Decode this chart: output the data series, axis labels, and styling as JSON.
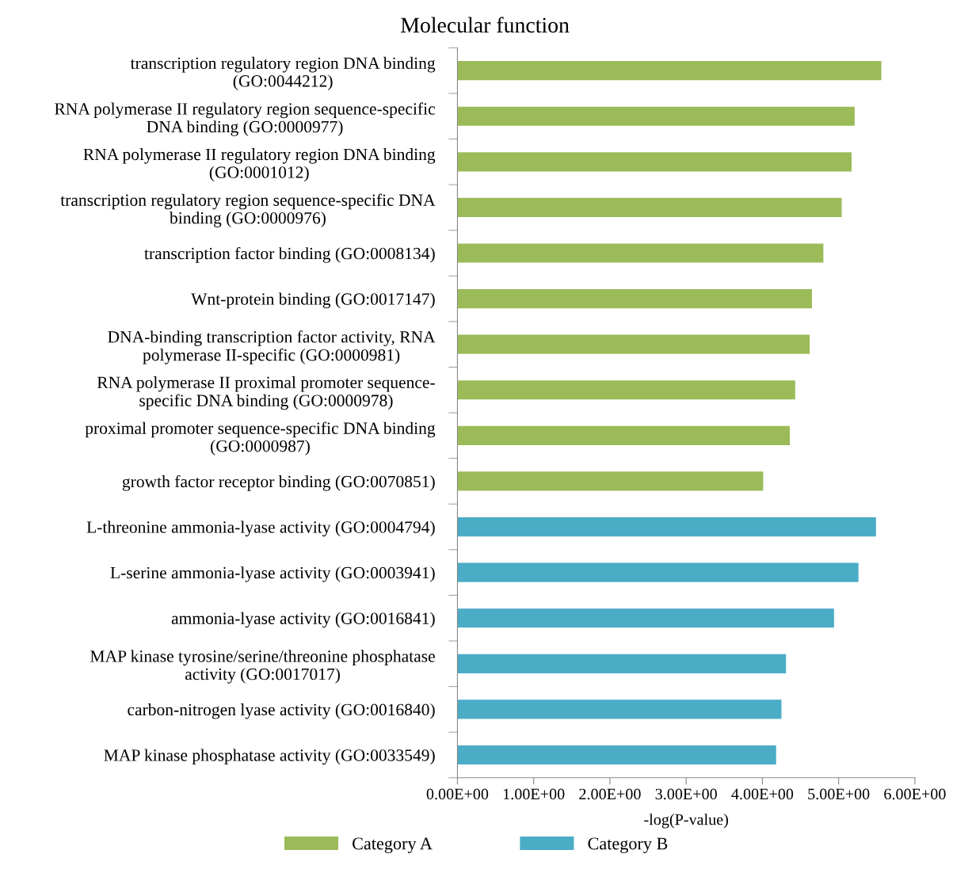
{
  "chart_data": {
    "type": "bar",
    "orientation": "horizontal",
    "title": "Molecular function",
    "xlabel": "-log(P-value)",
    "categories": [
      "transcription regulatory region DNA binding\n(GO:0044212)",
      "RNA polymerase II regulatory region sequence-specific\nDNA binding (GO:0000977)",
      "RNA polymerase II regulatory region DNA binding\n(GO:0001012)",
      "transcription regulatory region sequence-specific DNA\nbinding (GO:0000976)",
      "transcription factor binding (GO:0008134)",
      "Wnt-protein binding (GO:0017147)",
      "DNA-binding transcription factor activity, RNA\npolymerase II-specific (GO:0000981)",
      "RNA polymerase II proximal promoter sequence-\nspecific DNA binding (GO:0000978)",
      "proximal promoter sequence-specific DNA binding\n(GO:0000987)",
      "growth factor receptor binding (GO:0070851)",
      "L-threonine ammonia-lyase activity (GO:0004794)",
      "L-serine ammonia-lyase activity (GO:0003941)",
      "ammonia-lyase activity (GO:0016841)",
      "MAP kinase tyrosine/serine/threonine phosphatase\nactivity (GO:0017017)",
      "carbon-nitrogen lyase activity (GO:0016840)",
      "MAP kinase phosphatase activity (GO:0033549)"
    ],
    "series": [
      {
        "name": "Category A",
        "color": "#9bbb59",
        "values": [
          5.56,
          5.21,
          5.17,
          5.04,
          4.8,
          4.65,
          4.62,
          4.43,
          4.36,
          4.01,
          null,
          null,
          null,
          null,
          null,
          null
        ]
      },
      {
        "name": "Category B",
        "color": "#4bacc6",
        "values": [
          null,
          null,
          null,
          null,
          null,
          null,
          null,
          null,
          null,
          null,
          5.49,
          5.26,
          4.94,
          4.31,
          4.25,
          4.18
        ]
      }
    ],
    "xlim": [
      0,
      6
    ],
    "xticks": [
      {
        "value": 0,
        "label": "0.00E+00"
      },
      {
        "value": 1,
        "label": "1.00E+00"
      },
      {
        "value": 2,
        "label": "2.00E+00"
      },
      {
        "value": 3,
        "label": "3.00E+00"
      },
      {
        "value": 4,
        "label": "4.00E+00"
      },
      {
        "value": 5,
        "label": "5.00E+00"
      },
      {
        "value": 6,
        "label": "6.00E+00"
      }
    ],
    "grid": false,
    "legend": "bottom"
  }
}
